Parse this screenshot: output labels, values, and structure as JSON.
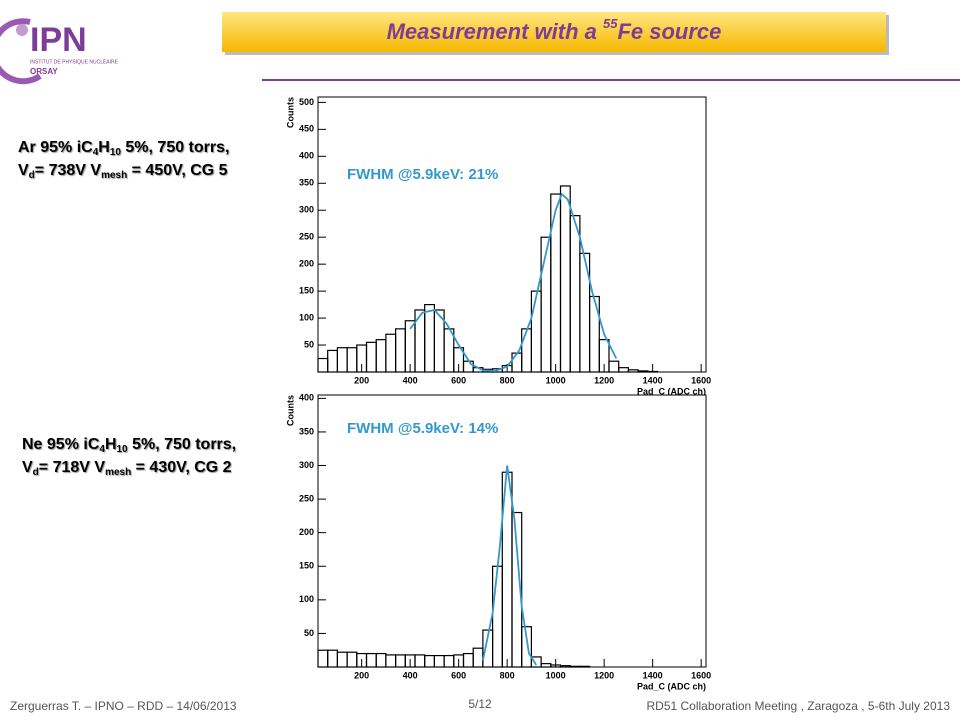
{
  "logo": {
    "name": "IPN",
    "subtitle": "INSTITUT DE PHYSIQUE NUCLÉAIRE",
    "place": "ORSAY"
  },
  "title": [
    "Measurement with a ",
    "55",
    "Fe source"
  ],
  "conditions": [
    {
      "lines": [
        [
          "Ar 95% iC",
          "4",
          "H",
          "10",
          " 5%, 750 torrs,"
        ],
        [
          "V",
          "d",
          "= 738V V",
          "mesh",
          " = 450V, CG 5"
        ]
      ]
    },
    {
      "lines": [
        [
          "Ne 95% iC",
          "4",
          "H",
          "10",
          " 5%, 750 torrs,"
        ],
        [
          "V",
          "d",
          "= 718V V",
          "mesh",
          " = 430V, CG 2"
        ]
      ]
    }
  ],
  "footer": {
    "left": "Zerguerras T. – IPNO – RDD – 14/06/2013",
    "page": "5/12",
    "right": "RD51 Collaboration Meeting , Zaragoza , 5-6th July 2013"
  },
  "chart_data": [
    {
      "type": "histogram",
      "xlabel": "Pad_C (ADC ch)",
      "ylabel": "Counts",
      "annotation": "FWHM @5.9keV: 21%",
      "annotation_color": "#3399cc",
      "bins": [
        20,
        60,
        100,
        140,
        180,
        220,
        260,
        300,
        340,
        380,
        420,
        460,
        500,
        540,
        580,
        620,
        660,
        700,
        740,
        780,
        820,
        860,
        900,
        940,
        980,
        1020,
        1060,
        1100,
        1140,
        1180,
        1220,
        1260,
        1300,
        1340,
        1380,
        1420,
        1460,
        1500,
        1540,
        1580,
        1620
      ],
      "values": [
        25,
        40,
        45,
        45,
        50,
        55,
        60,
        70,
        80,
        95,
        115,
        125,
        115,
        80,
        45,
        20,
        8,
        5,
        6,
        12,
        35,
        80,
        150,
        250,
        330,
        345,
        290,
        220,
        140,
        60,
        20,
        8,
        4,
        2,
        1,
        0,
        0,
        0,
        0,
        0
      ],
      "color": "#000000",
      "fit": {
        "x": [
          400,
          450,
          500,
          550,
          600,
          650,
          700,
          750,
          800,
          850,
          900,
          950,
          1000,
          1025,
          1050,
          1100,
          1150,
          1200,
          1250
        ],
        "values": [
          80,
          110,
          115,
          90,
          50,
          15,
          3,
          2,
          10,
          40,
          100,
          200,
          300,
          330,
          320,
          250,
          150,
          70,
          25
        ],
        "color": "#3399cc"
      },
      "xlim": [
        20,
        1620
      ],
      "ylim": [
        0,
        510
      ],
      "xticks": [
        200,
        400,
        600,
        800,
        1000,
        1200,
        1400,
        1600
      ],
      "yticks": [
        50,
        100,
        150,
        200,
        250,
        300,
        350,
        400,
        450,
        500
      ]
    },
    {
      "type": "histogram",
      "xlabel": "Pad_C (ADC ch)",
      "ylabel": "Counts",
      "annotation": "FWHM @5.9keV: 14%",
      "annotation_color": "#3399cc",
      "bins": [
        20,
        60,
        100,
        140,
        180,
        220,
        260,
        300,
        340,
        380,
        420,
        460,
        500,
        540,
        580,
        620,
        660,
        700,
        740,
        780,
        820,
        860,
        900,
        940,
        980,
        1020,
        1060,
        1100,
        1140,
        1180,
        1220,
        1260,
        1300,
        1340,
        1380,
        1420,
        1460,
        1500,
        1540,
        1580,
        1620
      ],
      "values": [
        25,
        25,
        22,
        22,
        20,
        20,
        20,
        18,
        18,
        18,
        18,
        17,
        17,
        17,
        18,
        20,
        28,
        55,
        150,
        290,
        230,
        60,
        15,
        5,
        3,
        2,
        1,
        1,
        0,
        0,
        0,
        0,
        0,
        0,
        0,
        0,
        0,
        0,
        0,
        0
      ],
      "color": "#000000",
      "fit": {
        "x": [
          700,
          740,
          770,
          800,
          830,
          860,
          890,
          920
        ],
        "values": [
          10,
          80,
          180,
          300,
          220,
          90,
          20,
          3
        ],
        "color": "#3399cc"
      },
      "xlim": [
        20,
        1620
      ],
      "ylim": [
        0,
        405
      ],
      "xticks": [
        200,
        400,
        600,
        800,
        1000,
        1200,
        1400,
        1600
      ],
      "yticks": [
        50,
        100,
        150,
        200,
        250,
        300,
        350,
        400
      ]
    }
  ]
}
